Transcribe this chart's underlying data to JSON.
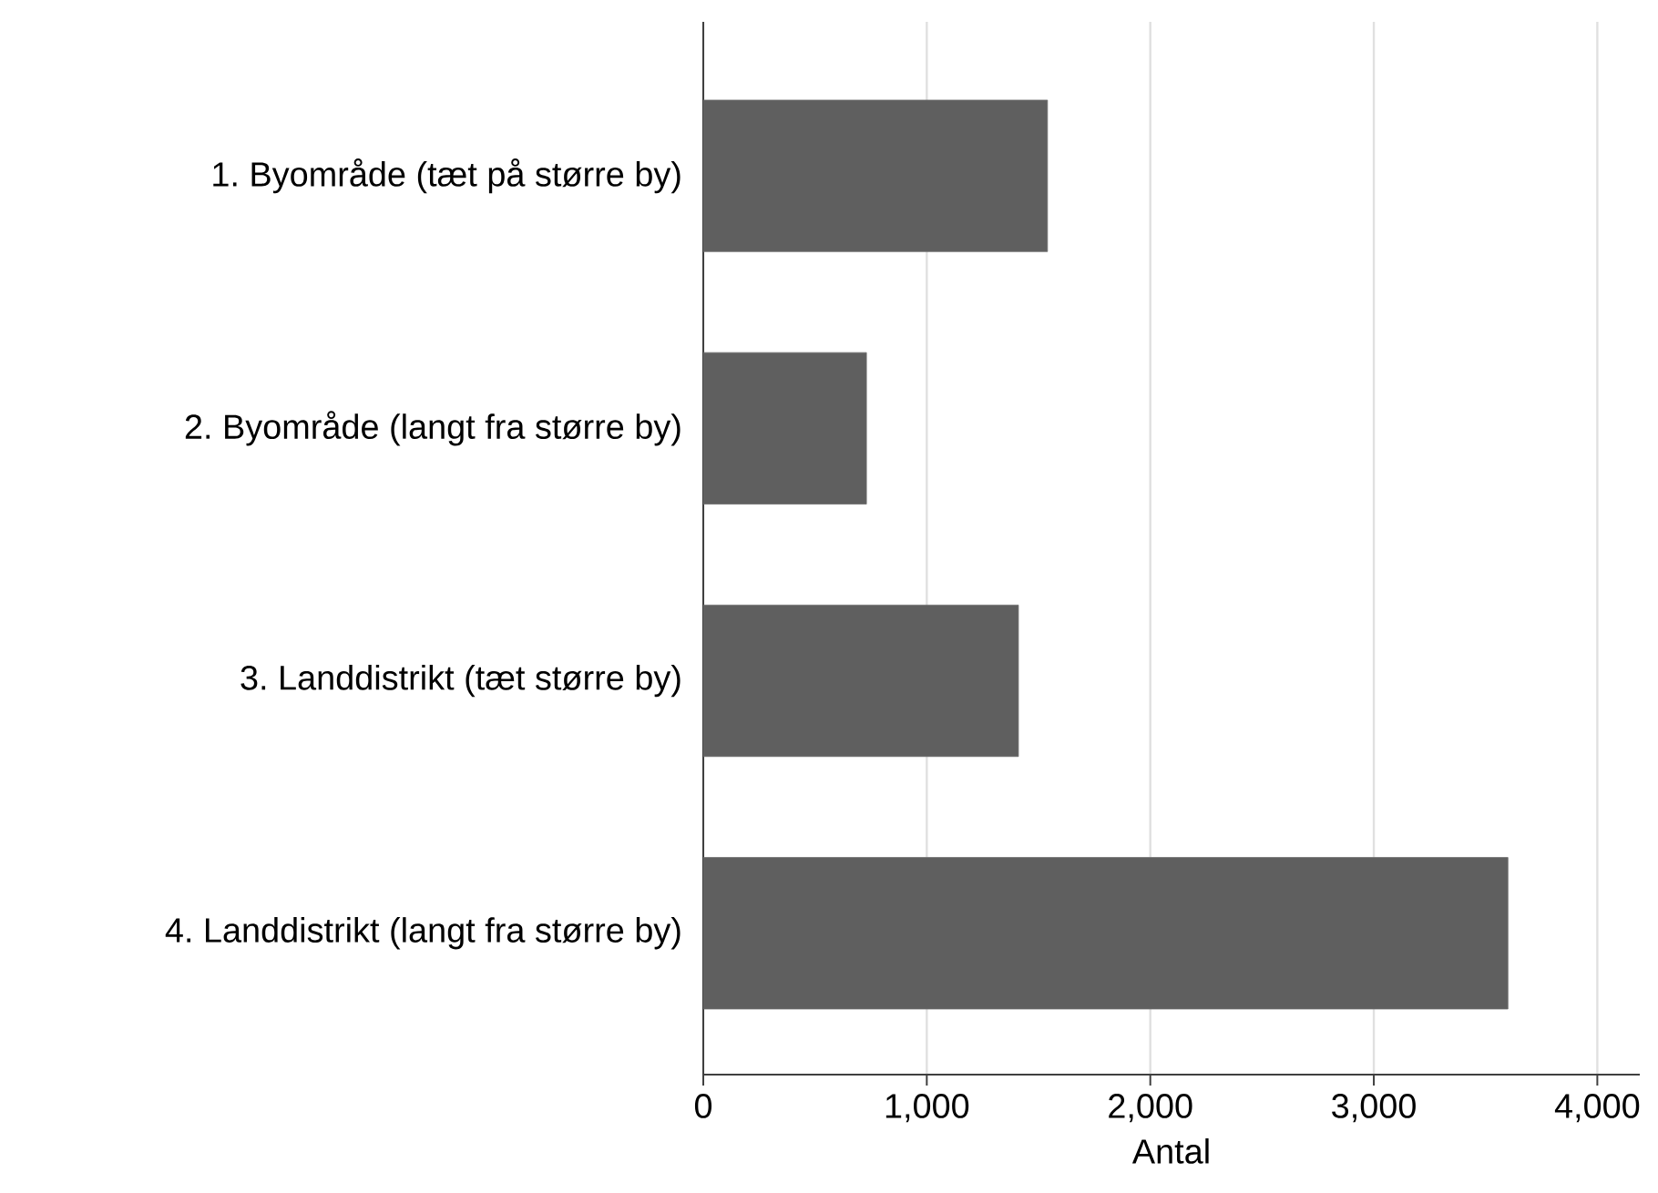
{
  "chart_data": {
    "type": "bar",
    "orientation": "horizontal",
    "xlabel": "Antal",
    "categories": [
      "1. Byområde (tæt på større by)",
      "2. Byområde (langt fra større by)",
      "3. Landdistrikt (tæt større by)",
      "4. Landdistrikt (langt fra større by)"
    ],
    "values": [
      1540,
      730,
      1410,
      3600
    ],
    "color": "#5f5f5f",
    "xlim": [
      0,
      4190
    ],
    "xticks": [
      0,
      {
        "value": 1000,
        "label": "1,000"
      },
      {
        "value": 2000,
        "label": "2,000"
      },
      {
        "value": 3000,
        "label": "3,000"
      },
      {
        "value": 4000,
        "label": "4,000"
      }
    ],
    "grid": "x"
  }
}
